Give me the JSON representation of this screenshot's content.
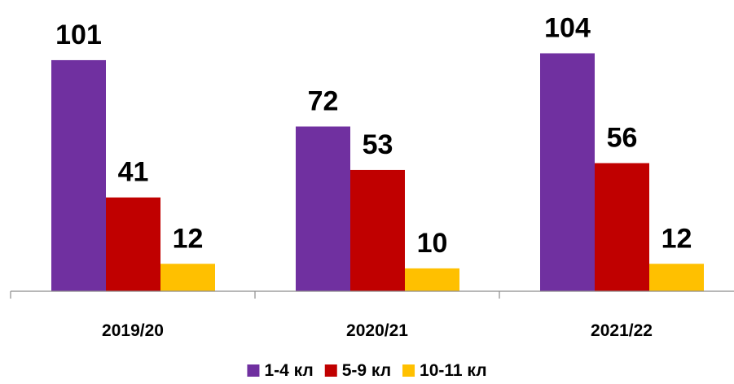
{
  "chart_data": {
    "type": "bar",
    "categories": [
      "2019/20",
      "2020/21",
      "2021/22"
    ],
    "series": [
      {
        "name": "1-4 кл",
        "values": [
          101,
          72,
          104
        ],
        "color": "#7030A0"
      },
      {
        "name": "5-9 кл",
        "values": [
          41,
          53,
          56
        ],
        "color": "#C00000"
      },
      {
        "name": "10-11 кл",
        "values": [
          12,
          10,
          12
        ],
        "color": "#FFC000"
      }
    ],
    "title": "",
    "xlabel": "",
    "ylabel": "",
    "ylim": [
      0,
      114
    ],
    "grid": false,
    "legend": "bottom-center",
    "data_labels": true
  }
}
